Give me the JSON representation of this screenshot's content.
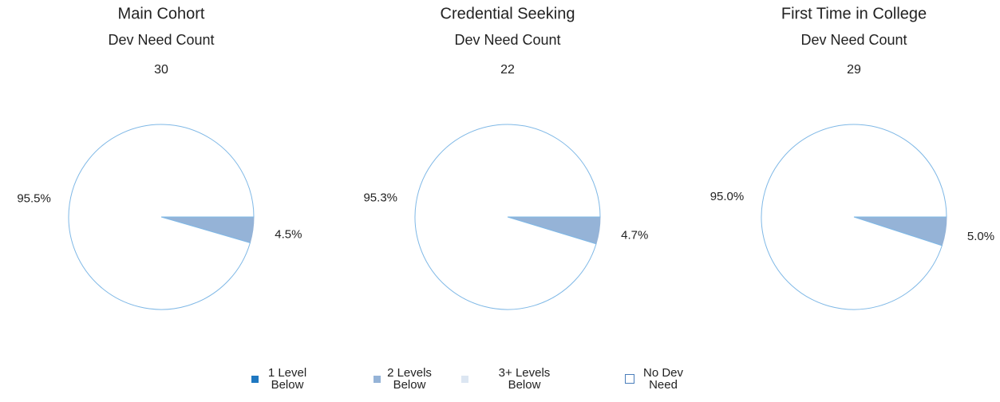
{
  "chart_data": [
    {
      "type": "pie",
      "title": "Main Cohort",
      "subtitle": "Dev Need Count",
      "count": 30,
      "categories": [
        "2 Levels Below",
        "No Dev Need"
      ],
      "values": [
        4.5,
        95.5
      ],
      "value_labels": [
        "4.5%",
        "95.5%"
      ],
      "colors": [
        "#95b3d7",
        "#ffffff"
      ]
    },
    {
      "type": "pie",
      "title": "Credential Seeking",
      "subtitle": "Dev Need Count",
      "count": 22,
      "categories": [
        "2 Levels Below",
        "No Dev Need"
      ],
      "values": [
        4.7,
        95.3
      ],
      "value_labels": [
        "4.7%",
        "95.3%"
      ],
      "colors": [
        "#95b3d7",
        "#ffffff"
      ]
    },
    {
      "type": "pie",
      "title": "First Time in College",
      "subtitle": "Dev Need Count",
      "count": 29,
      "categories": [
        "2 Levels Below",
        "No Dev Need"
      ],
      "values": [
        5.0,
        95.0
      ],
      "value_labels": [
        "5.0%",
        "95.0%"
      ],
      "colors": [
        "#95b3d7",
        "#ffffff"
      ]
    }
  ],
  "legend": [
    {
      "name": "1 Level Below",
      "color": "#1f78c1"
    },
    {
      "name": "2 Levels Below",
      "color": "#95b3d7"
    },
    {
      "name": "3+ Levels Below",
      "color": "#dce6f2"
    },
    {
      "name": "No Dev Need",
      "color": "#ffffff"
    }
  ]
}
